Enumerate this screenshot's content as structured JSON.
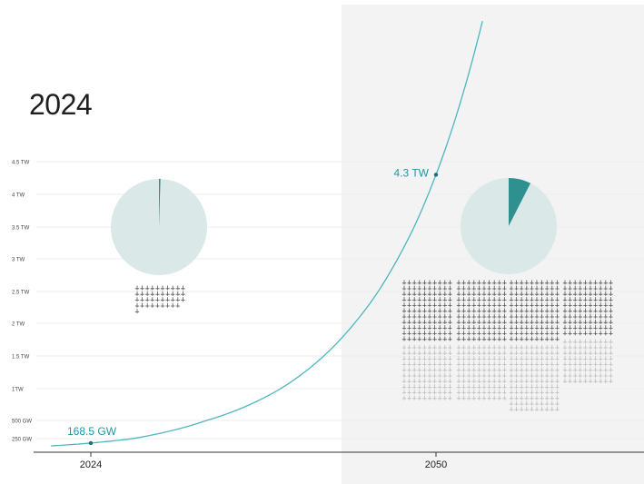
{
  "headings": {
    "left_year": "2024",
    "right_year": "2050"
  },
  "colors": {
    "curve": "#4fb6bf",
    "accent_text": "#1f96a8",
    "panel_bg": "#f3f3f3",
    "pie_bg": "#dbe8e8",
    "pie_slice": "#2e9190",
    "grid": "#ececec",
    "turbine_dark": "#555555",
    "turbine_light": "#bdbdbd"
  },
  "chart_data": {
    "type": "line",
    "title": "",
    "xlabel": "",
    "ylabel": "",
    "x_ticks": [
      "2024",
      "2050"
    ],
    "y_ticks": [
      {
        "value": 0.25,
        "label": "250 GW"
      },
      {
        "value": 0.5,
        "label": "500 GW"
      },
      {
        "value": 1,
        "label": "1TW"
      },
      {
        "value": 1.5,
        "label": "1.5 TW"
      },
      {
        "value": 2,
        "label": "2 TW"
      },
      {
        "value": 2.5,
        "label": "2.5 TW"
      },
      {
        "value": 3,
        "label": "3 TW"
      },
      {
        "value": 3.5,
        "label": "3.5 TW"
      },
      {
        "value": 4,
        "label": "4 TW"
      },
      {
        "value": 4.5,
        "label": "4.5 TW"
      }
    ],
    "ylim": [
      0,
      4.5
    ],
    "xlim": [
      2024,
      2050
    ],
    "y_unit": "TW",
    "series": [
      {
        "values": [
          {
            "x": 2024,
            "y": 0.1685
          },
          {
            "x": 2030,
            "y": 0.4
          },
          {
            "x": 2035,
            "y": 0.85
          },
          {
            "x": 2040,
            "y": 1.55
          },
          {
            "x": 2045,
            "y": 2.65
          },
          {
            "x": 2050,
            "y": 4.3
          }
        ]
      }
    ],
    "annotations": [
      {
        "x": 2024,
        "y": 0.1685,
        "label": "168.5 GW"
      },
      {
        "x": 2050,
        "y": 4.3,
        "label": "4.3 TW"
      }
    ],
    "pies": [
      {
        "year": "2024",
        "share": 0.005
      },
      {
        "year": "2050",
        "share": 0.075
      }
    ],
    "turbine_rows": {
      "2024": [
        10,
        10,
        10,
        9,
        1
      ],
      "2050_dark": [
        [
          10,
          10,
          10,
          10,
          10,
          10,
          10,
          10,
          10,
          10,
          10
        ],
        [
          10,
          10,
          10,
          10,
          10,
          10,
          10,
          10,
          10,
          10,
          10
        ],
        [
          10,
          10,
          10,
          10,
          10,
          10,
          10,
          10,
          10,
          10,
          10
        ],
        [
          10,
          10,
          10,
          10,
          10,
          10,
          10,
          10,
          10,
          10
        ]
      ],
      "2050_light": [
        [
          10,
          10,
          10,
          10,
          10,
          10,
          10,
          10,
          10,
          10
        ],
        [
          10,
          10,
          10,
          10,
          10,
          10,
          10,
          10,
          10,
          10
        ],
        [
          10,
          10,
          10,
          10,
          10,
          10,
          10,
          10,
          10,
          10,
          10,
          10
        ],
        [
          10,
          10,
          10,
          10,
          10,
          10,
          10,
          10
        ]
      ]
    }
  }
}
